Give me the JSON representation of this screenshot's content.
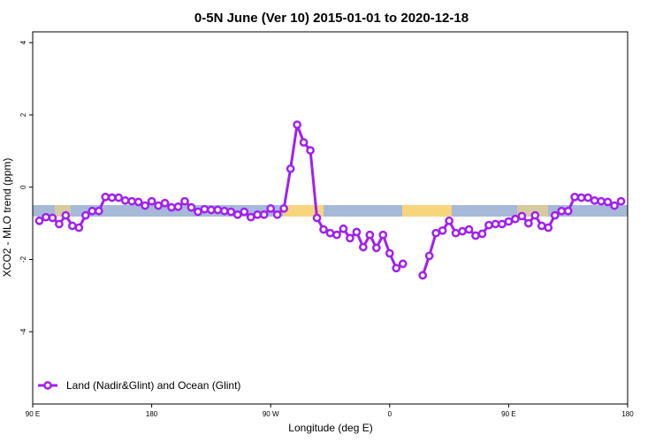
{
  "chart_data": {
    "type": "line",
    "title": "0-5N June (Ver 10)   2015-01-01 to 2020-12-18",
    "x_label": "Longitude (deg E)",
    "y_label": "XCO2 - MLO trend (ppm)",
    "x": [
      95,
      100,
      105,
      110,
      115,
      120,
      125,
      130,
      135,
      140,
      145,
      150,
      155,
      160,
      165,
      170,
      175,
      180,
      185,
      190,
      195,
      200,
      205,
      210,
      215,
      220,
      225,
      230,
      235,
      240,
      245,
      250,
      255,
      260,
      265,
      270,
      275,
      280,
      285,
      290,
      295,
      300,
      305,
      310,
      315,
      320,
      325,
      330,
      335,
      340,
      345,
      350,
      355,
      360,
      365,
      370,
      375,
      380,
      385,
      390,
      395,
      400,
      405,
      410,
      415,
      420,
      425,
      430,
      435,
      440,
      445,
      450,
      455,
      460,
      465,
      470,
      475,
      480,
      485,
      490,
      495,
      500,
      505,
      510,
      515,
      520,
      525,
      530,
      535
    ],
    "series": [
      {
        "name": "Land (Nadir&Glint) and Ocean (Glint)",
        "color": "#a020f0",
        "values": [
          -0.93,
          -0.83,
          -0.85,
          -1.02,
          -0.78,
          -1.07,
          -1.12,
          -0.78,
          -0.66,
          -0.66,
          -0.27,
          -0.29,
          -0.29,
          -0.37,
          -0.39,
          -0.41,
          -0.51,
          -0.39,
          -0.51,
          -0.44,
          -0.56,
          -0.54,
          -0.39,
          -0.56,
          -0.68,
          -0.61,
          -0.63,
          -0.63,
          -0.66,
          -0.68,
          -0.76,
          -0.68,
          -0.83,
          -0.76,
          -0.76,
          -0.59,
          -0.76,
          -0.59,
          0.51,
          1.73,
          1.24,
          1.02,
          -0.85,
          -1.17,
          -1.27,
          -1.32,
          -1.15,
          -1.41,
          -1.24,
          -1.66,
          -1.32,
          -1.68,
          -1.32,
          -1.83,
          -2.24,
          -2.12,
          null,
          null,
          -2.44,
          -1.9,
          -1.27,
          -1.2,
          -0.93,
          -1.27,
          -1.22,
          -1.17,
          -1.34,
          -1.29,
          -1.05,
          -1.02,
          -1.02,
          -0.95,
          -0.88,
          -0.8,
          -1.0,
          -0.78,
          -1.07,
          -1.12,
          -0.78,
          -0.66,
          -0.66,
          -0.27,
          -0.29,
          -0.29,
          -0.37,
          -0.39,
          -0.41,
          -0.51,
          -0.39
        ]
      }
    ],
    "xlim": [
      90,
      540
    ],
    "xticks": [
      {
        "value": 90,
        "label": "90 E"
      },
      180,
      {
        "value": 270,
        "label": "90 W"
      },
      {
        "value": 360,
        "label": "0"
      },
      {
        "value": 450,
        "label": "90 E"
      },
      {
        "value": 540,
        "label": "180"
      }
    ],
    "ylim": [
      -6,
      4.3
    ],
    "yticks": [
      -4,
      -2,
      0,
      2,
      4
    ],
    "legend": "bottom-left"
  }
}
